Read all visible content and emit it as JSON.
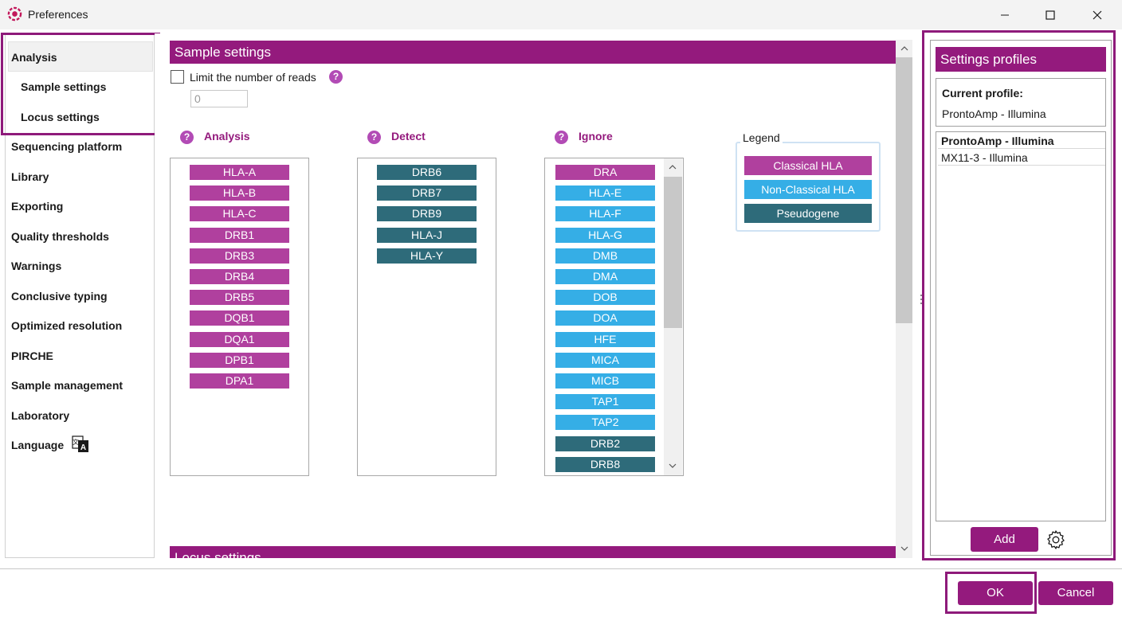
{
  "window": {
    "title": "Preferences"
  },
  "nav": {
    "items": [
      {
        "label": "Analysis"
      },
      {
        "label": "Sample settings"
      },
      {
        "label": "Locus settings"
      },
      {
        "label": "Sequencing platform"
      },
      {
        "label": "Library"
      },
      {
        "label": "Exporting"
      },
      {
        "label": "Quality thresholds"
      },
      {
        "label": "Warnings"
      },
      {
        "label": "Conclusive typing"
      },
      {
        "label": "Optimized resolution"
      },
      {
        "label": "PIRCHE"
      },
      {
        "label": "Sample management"
      },
      {
        "label": "Laboratory"
      },
      {
        "label": "Language"
      }
    ]
  },
  "sample_settings": {
    "title": "Sample settings",
    "limit_reads_label": "Limit the number of reads",
    "limit_reads_checked": false,
    "limit_reads_value": "0",
    "columns": {
      "analysis": {
        "title": "Analysis",
        "items": [
          {
            "label": "HLA-A",
            "type": "classical"
          },
          {
            "label": "HLA-B",
            "type": "classical"
          },
          {
            "label": "HLA-C",
            "type": "classical"
          },
          {
            "label": "DRB1",
            "type": "classical"
          },
          {
            "label": "DRB3",
            "type": "classical"
          },
          {
            "label": "DRB4",
            "type": "classical"
          },
          {
            "label": "DRB5",
            "type": "classical"
          },
          {
            "label": "DQB1",
            "type": "classical"
          },
          {
            "label": "DQA1",
            "type": "classical"
          },
          {
            "label": "DPB1",
            "type": "classical"
          },
          {
            "label": "DPA1",
            "type": "classical"
          }
        ]
      },
      "detect": {
        "title": "Detect",
        "items": [
          {
            "label": "DRB6",
            "type": "pseudo"
          },
          {
            "label": "DRB7",
            "type": "pseudo"
          },
          {
            "label": "DRB9",
            "type": "pseudo"
          },
          {
            "label": "HLA-J",
            "type": "pseudo"
          },
          {
            "label": "HLA-Y",
            "type": "pseudo"
          }
        ]
      },
      "ignore": {
        "title": "Ignore",
        "items": [
          {
            "label": "DRA",
            "type": "classical"
          },
          {
            "label": "HLA-E",
            "type": "nonclassical"
          },
          {
            "label": "HLA-F",
            "type": "nonclassical"
          },
          {
            "label": "HLA-G",
            "type": "nonclassical"
          },
          {
            "label": "DMB",
            "type": "nonclassical"
          },
          {
            "label": "DMA",
            "type": "nonclassical"
          },
          {
            "label": "DOB",
            "type": "nonclassical"
          },
          {
            "label": "DOA",
            "type": "nonclassical"
          },
          {
            "label": "HFE",
            "type": "nonclassical"
          },
          {
            "label": "MICA",
            "type": "nonclassical"
          },
          {
            "label": "MICB",
            "type": "nonclassical"
          },
          {
            "label": "TAP1",
            "type": "nonclassical"
          },
          {
            "label": "TAP2",
            "type": "nonclassical"
          },
          {
            "label": "DRB2",
            "type": "pseudo"
          },
          {
            "label": "DRB8",
            "type": "pseudo"
          }
        ]
      }
    },
    "legend": {
      "title": "Legend",
      "items": [
        {
          "label": "Classical HLA",
          "type": "classical"
        },
        {
          "label": "Non-Classical HLA",
          "type": "nonclassical"
        },
        {
          "label": "Pseudogene",
          "type": "pseudo"
        }
      ]
    }
  },
  "locus_settings": {
    "title": "Locus settings"
  },
  "profiles": {
    "title": "Settings profiles",
    "current_label": "Current profile:",
    "current_value": "ProntoAmp - Illumina",
    "list": [
      {
        "label": "ProntoAmp - Illumina",
        "bold": true
      },
      {
        "label": "MX11-3 - Illumina",
        "bold": false
      }
    ],
    "add_label": "Add"
  },
  "footer": {
    "ok_label": "OK",
    "cancel_label": "Cancel"
  },
  "colors": {
    "accent": "#941a7d",
    "classical": "#b0409e",
    "nonclassical": "#35aee6",
    "pseudo": "#2e6b7a"
  }
}
